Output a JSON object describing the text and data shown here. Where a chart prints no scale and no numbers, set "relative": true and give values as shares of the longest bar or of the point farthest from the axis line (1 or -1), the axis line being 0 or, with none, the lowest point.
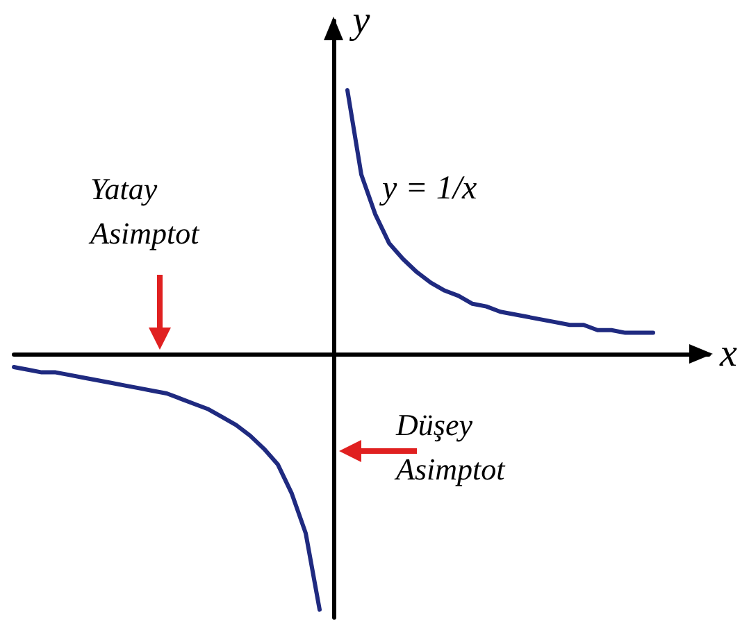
{
  "chart_data": {
    "type": "line",
    "relative": true,
    "xlabel": "x",
    "ylabel": "y",
    "categories": [
      null,
      null,
      null,
      null,
      null,
      null,
      null,
      null,
      null,
      null,
      null,
      null,
      null,
      null,
      null,
      null,
      null,
      null,
      null,
      null,
      null,
      null,
      null,
      null,
      null,
      null,
      null,
      null,
      null,
      null,
      null,
      null,
      null,
      null,
      null,
      null,
      null,
      null,
      null,
      null,
      null,
      null,
      null,
      null,
      null,
      null,
      null,
      null,
      null,
      null,
      null
    ],
    "series": [
      {
        "color": "#1f2a80",
        "values": [
          -0.05,
          -0.06,
          -0.07,
          -0.07,
          -0.08,
          -0.09,
          -0.1,
          -0.11,
          -0.12,
          -0.13,
          -0.14,
          -0.15,
          -0.17,
          -0.19,
          -0.21,
          -0.24,
          -0.27,
          -0.31,
          -0.36,
          -0.42,
          -0.53,
          -0.68,
          -0.97,
          null,
          null,
          null,
          null,
          null,
          null,
          null,
          null,
          null,
          null,
          null,
          null,
          null,
          null,
          null,
          null,
          null,
          null,
          null,
          null,
          null,
          null,
          null,
          null,
          null,
          null,
          null,
          null
        ]
      },
      {
        "color": "#1f2a80",
        "values": [
          null,
          null,
          null,
          null,
          null,
          null,
          null,
          null,
          null,
          null,
          null,
          null,
          null,
          null,
          null,
          null,
          null,
          null,
          null,
          null,
          null,
          null,
          null,
          null,
          1.0,
          0.68,
          0.53,
          0.42,
          0.36,
          0.31,
          0.27,
          0.24,
          0.22,
          0.19,
          0.18,
          0.16,
          0.15,
          0.14,
          0.13,
          0.12,
          0.11,
          0.11,
          0.09,
          0.09,
          0.08,
          0.08,
          0.08,
          null,
          null,
          null,
          null
        ]
      }
    ],
    "annotations": [
      "Yatay Asimptot",
      "Düşey Asimptot",
      "y = 1/x"
    ],
    "marker": "none",
    "line_style": "solid"
  }
}
